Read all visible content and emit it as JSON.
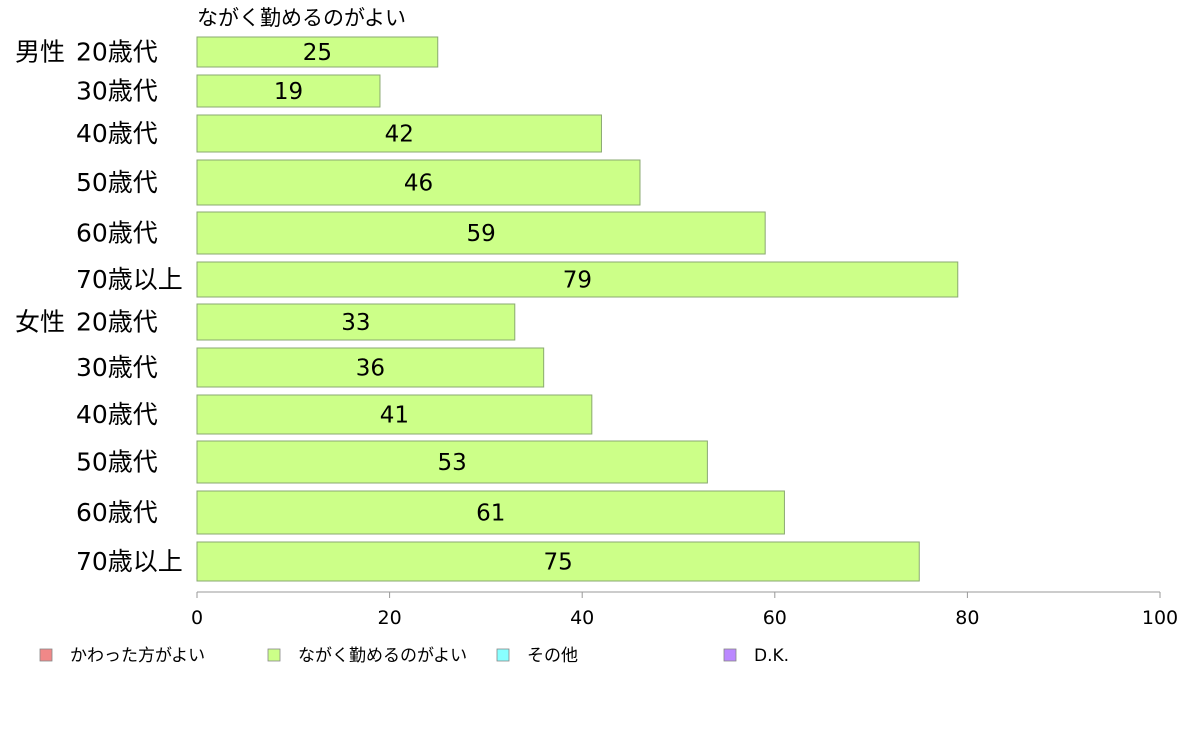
{
  "chart_data": {
    "type": "bar",
    "orientation": "horizontal",
    "title": "ながく勤めるのがよい",
    "groups": [
      "男性",
      "女性"
    ],
    "categories": [
      "20歳代",
      "30歳代",
      "40歳代",
      "50歳代",
      "60歳代",
      "70歳以上",
      "20歳代",
      "30歳代",
      "40歳代",
      "50歳代",
      "60歳代",
      "70歳以上"
    ],
    "category_group": [
      "男性",
      "",
      "",
      "",
      "",
      "",
      "女性",
      "",
      "",
      "",
      "",
      ""
    ],
    "series": [
      {
        "name": "ながく勤めるのがよい",
        "values": [
          25,
          19,
          42,
          46,
          59,
          79,
          33,
          36,
          41,
          53,
          61,
          75
        ],
        "color": "#ccff88"
      }
    ],
    "xlim": [
      0,
      100
    ],
    "xticks": [
      0,
      20,
      40,
      60,
      80,
      100
    ],
    "grid": false,
    "legend": {
      "placement": "bottom",
      "items": [
        {
          "label": "かわった方がよい",
          "color": "#f08888"
        },
        {
          "label": "ながく勤めるのがよい",
          "color": "#ccff88"
        },
        {
          "label": "その他",
          "color": "#88ffff"
        },
        {
          "label": "D.K.",
          "color": "#bb88ff"
        }
      ]
    },
    "bar_border_color": "#8aa870",
    "axis_color": "#999999"
  }
}
